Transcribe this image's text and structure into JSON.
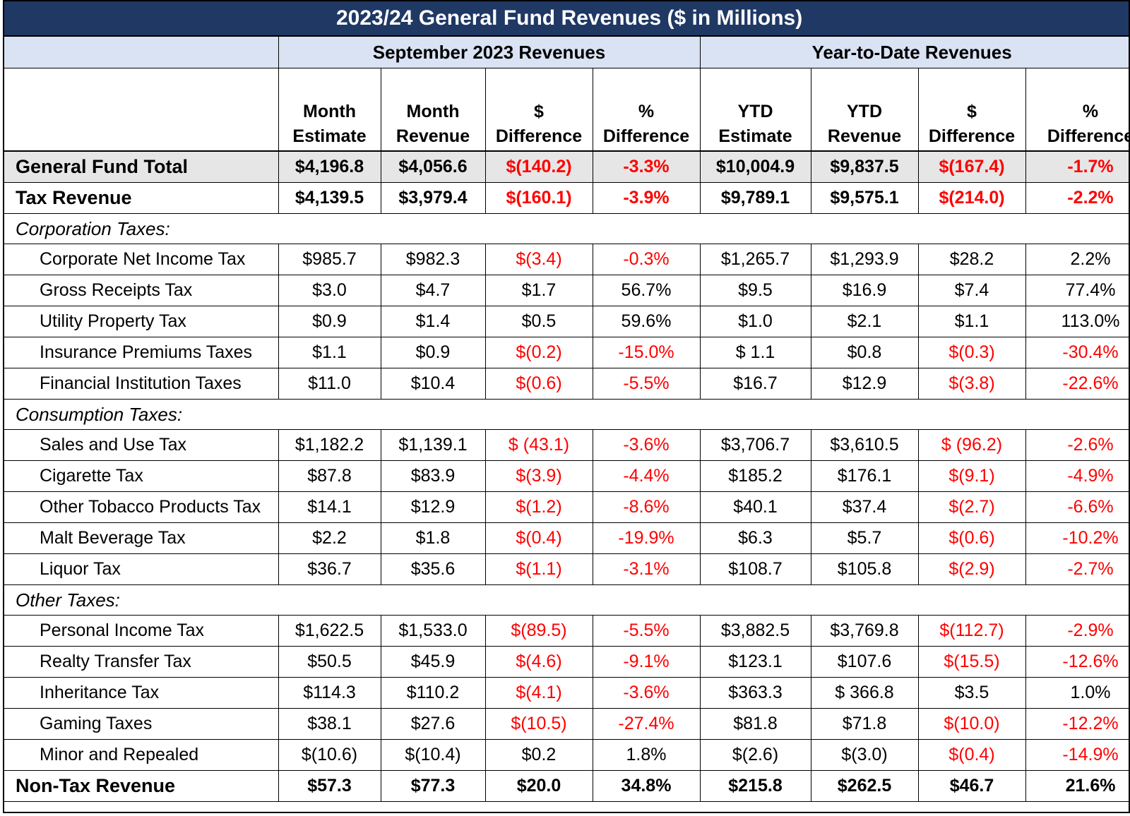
{
  "title": "2023/24 General Fund Revenues ($ in Millions)",
  "groups": [
    "September 2023 Revenues",
    "Year-to-Date Revenues"
  ],
  "columns": [
    [
      "Month",
      "Estimate"
    ],
    [
      "Month",
      "Revenue"
    ],
    [
      "$",
      "Difference"
    ],
    [
      "%",
      "Difference"
    ],
    [
      "YTD",
      "Estimate"
    ],
    [
      "YTD",
      "Revenue"
    ],
    [
      "$",
      "Difference"
    ],
    [
      "%",
      "Difference"
    ]
  ],
  "rows": [
    {
      "label": "General Fund Total",
      "values": [
        "$4,196.8",
        "$4,056.6",
        "$(140.2)",
        "-3.3%",
        "$10,004.9",
        "$9,837.5",
        "$(167.4)",
        "-1.7%"
      ]
    },
    {
      "label": "Tax Revenue",
      "values": [
        "$4,139.5",
        "$3,979.4",
        "$(160.1)",
        "-3.9%",
        "$9,789.1",
        "$9,575.1",
        "$(214.0)",
        "-2.2%"
      ]
    },
    {
      "section": "Corporation Taxes:"
    },
    {
      "label": "Corporate Net Income Tax",
      "values": [
        "$985.7",
        "$982.3",
        "$(3.4)",
        "-0.3%",
        "$1,265.7",
        "$1,293.9",
        "$28.2",
        "2.2%"
      ]
    },
    {
      "label": "Gross Receipts Tax",
      "values": [
        "$3.0",
        "$4.7",
        "$1.7",
        "56.7%",
        "$9.5",
        "$16.9",
        "$7.4",
        "77.4%"
      ]
    },
    {
      "label": "Utility Property Tax",
      "values": [
        "$0.9",
        "$1.4",
        "$0.5",
        "59.6%",
        "$1.0",
        "$2.1",
        "$1.1",
        "113.0%"
      ]
    },
    {
      "label": "Insurance Premiums Taxes",
      "values": [
        "$1.1",
        "$0.9",
        "$(0.2)",
        "-15.0%",
        "$ 1.1",
        "$0.8",
        "$(0.3)",
        "-30.4%"
      ]
    },
    {
      "label": "Financial Institution Taxes",
      "values": [
        "$11.0",
        "$10.4",
        "$(0.6)",
        "-5.5%",
        "$16.7",
        "$12.9",
        "$(3.8)",
        "-22.6%"
      ]
    },
    {
      "section": "Consumption Taxes:"
    },
    {
      "label": "Sales and Use Tax",
      "values": [
        "$1,182.2",
        "$1,139.1",
        "$ (43.1)",
        "-3.6%",
        "$3,706.7",
        "$3,610.5",
        "$ (96.2)",
        "-2.6%"
      ]
    },
    {
      "label": "Cigarette Tax",
      "values": [
        "$87.8",
        "$83.9",
        "$(3.9)",
        "-4.4%",
        "$185.2",
        "$176.1",
        "$(9.1)",
        "-4.9%"
      ]
    },
    {
      "label": "Other Tobacco Products Tax",
      "values": [
        "$14.1",
        "$12.9",
        "$(1.2)",
        "-8.6%",
        "$40.1",
        "$37.4",
        "$(2.7)",
        "-6.6%"
      ]
    },
    {
      "label": "Malt Beverage Tax",
      "values": [
        "$2.2",
        "$1.8",
        "$(0.4)",
        "-19.9%",
        "$6.3",
        "$5.7",
        "$(0.6)",
        "-10.2%"
      ]
    },
    {
      "label": "Liquor Tax",
      "values": [
        "$36.7",
        "$35.6",
        "$(1.1)",
        "-3.1%",
        "$108.7",
        "$105.8",
        "$(2.9)",
        "-2.7%"
      ]
    },
    {
      "section": "Other Taxes:"
    },
    {
      "label": "Personal Income Tax",
      "values": [
        "$1,622.5",
        "$1,533.0",
        "$(89.5)",
        "-5.5%",
        "$3,882.5",
        "$3,769.8",
        "$(112.7)",
        "-2.9%"
      ]
    },
    {
      "label": "Realty Transfer Tax",
      "values": [
        "$50.5",
        "$45.9",
        "$(4.6)",
        "-9.1%",
        "$123.1",
        "$107.6",
        "$(15.5)",
        "-12.6%"
      ]
    },
    {
      "label": "Inheritance Tax",
      "values": [
        "$114.3",
        "$110.2",
        "$(4.1)",
        "-3.6%",
        "$363.3",
        "$ 366.8",
        "$3.5",
        "1.0%"
      ]
    },
    {
      "label": "Gaming Taxes",
      "values": [
        "$38.1",
        "$27.6",
        "$(10.5)",
        "-27.4%",
        "$81.8",
        "$71.8",
        "$(10.0)",
        "-12.2%"
      ]
    },
    {
      "label": "Minor and Repealed",
      "values": [
        "$(10.6)",
        "$(10.4)",
        "$0.2",
        "1.8%",
        "$(2.6)",
        "$(3.0)",
        "$(0.4)",
        "-14.9%"
      ]
    },
    {
      "label": "Non-Tax Revenue",
      "values": [
        "$57.3",
        "$77.3",
        "$20.0",
        "34.8%",
        "$215.8",
        "$262.5",
        "$46.7",
        "21.6%"
      ]
    }
  ],
  "colors": {
    "title_bg": "#1f3864",
    "group_bg": "#dae3f3",
    "total_bg": "#e7e6e6",
    "negative": "#ff0000"
  }
}
